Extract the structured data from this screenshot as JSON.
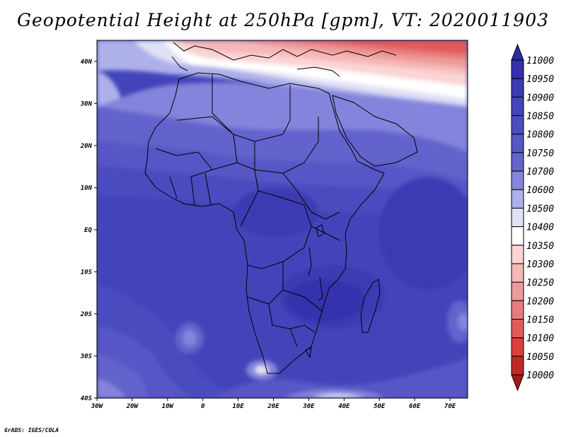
{
  "title": "Geopotential Height at 250hPa [gpm], VT: 2020011903",
  "credit": "GrADS: IGES/COLA",
  "map": {
    "lon_labels": [
      "30W",
      "20W",
      "10W",
      "0",
      "10E",
      "20E",
      "30E",
      "40E",
      "50E",
      "60E",
      "70E"
    ],
    "lat_labels": [
      "40N",
      "30N",
      "20N",
      "10N",
      "EQ",
      "10S",
      "20S",
      "30S",
      "40S"
    ],
    "lon_range": [
      -30,
      75
    ],
    "lat_range": [
      -40,
      45
    ]
  },
  "colorbar": {
    "levels": [
      "11000",
      "10950",
      "10900",
      "10850",
      "10800",
      "10750",
      "10700",
      "10600",
      "10500",
      "10400",
      "10350",
      "10300",
      "10250",
      "10200",
      "10150",
      "10100",
      "10050",
      "10000"
    ],
    "colors": [
      "#2c2ba6",
      "#3531ad",
      "#3c3bb4",
      "#4444ba",
      "#4c4cc0",
      "#5757c6",
      "#6464cd",
      "#8484dc",
      "#aeb0ea",
      "#e0e0f6",
      "#ffffff",
      "#fbd4d4",
      "#f5b8b8",
      "#ee9a9a",
      "#e87c7c",
      "#e05c5c",
      "#d84040",
      "#c02828",
      "#a81818"
    ]
  }
}
